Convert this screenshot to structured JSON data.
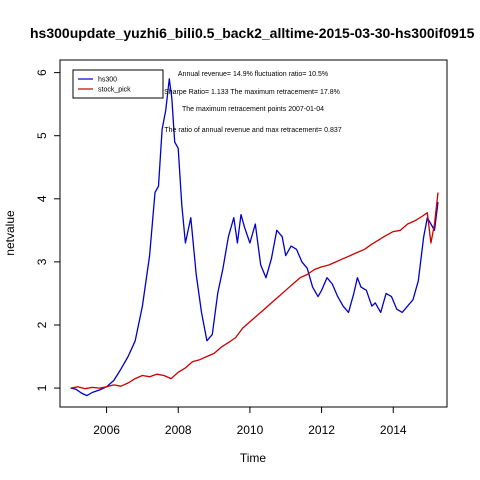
{
  "chart_data": {
    "type": "line",
    "title": "hs300update_yuzhi6_bili0.5_back2_alltime-2015-03-30-hs300if0915",
    "xlabel": "Time",
    "ylabel": "netvalue",
    "xlim": [
      2004.7,
      2015.5
    ],
    "ylim": [
      0.7,
      6.2
    ],
    "xticks": [
      2006,
      2008,
      2010,
      2012,
      2014
    ],
    "yticks": [
      1,
      2,
      3,
      4,
      5,
      6
    ],
    "grid": false,
    "legend": {
      "placement": "top-left",
      "entries": [
        "hs300",
        "stock_pick"
      ]
    },
    "annotations": [
      "Annual revenue= 14.9% fluctuation ratio= 10.5%",
      "Sharpe Ratio= 1.133 The maximum retracement= 17.8%",
      "The maximum retracement points 2007-01-04",
      "The ratio of annual revenue and max retracement= 0.837"
    ],
    "series": [
      {
        "name": "hs300",
        "color": "#0000cc",
        "x": [
          2005.0,
          2005.15,
          2005.3,
          2005.45,
          2005.6,
          2005.8,
          2006.0,
          2006.2,
          2006.4,
          2006.6,
          2006.8,
          2007.0,
          2007.2,
          2007.35,
          2007.45,
          2007.55,
          2007.65,
          2007.75,
          2007.82,
          2007.9,
          2008.0,
          2008.1,
          2008.2,
          2008.35,
          2008.5,
          2008.65,
          2008.8,
          2008.95,
          2009.1,
          2009.25,
          2009.4,
          2009.55,
          2009.65,
          2009.75,
          2009.85,
          2010.0,
          2010.15,
          2010.3,
          2010.45,
          2010.6,
          2010.75,
          2010.9,
          2011.0,
          2011.15,
          2011.3,
          2011.45,
          2011.6,
          2011.75,
          2011.9,
          2012.0,
          2012.15,
          2012.3,
          2012.45,
          2012.6,
          2012.75,
          2012.9,
          2013.0,
          2013.1,
          2013.25,
          2013.4,
          2013.5,
          2013.65,
          2013.8,
          2013.95,
          2014.1,
          2014.25,
          2014.4,
          2014.55,
          2014.7,
          2014.85,
          2014.95,
          2015.05,
          2015.15,
          2015.25
        ],
        "values": [
          1.0,
          0.98,
          0.92,
          0.88,
          0.93,
          0.97,
          1.02,
          1.12,
          1.3,
          1.5,
          1.75,
          2.3,
          3.1,
          4.1,
          4.2,
          5.1,
          5.4,
          5.9,
          5.6,
          4.9,
          4.8,
          3.9,
          3.3,
          3.7,
          2.8,
          2.2,
          1.75,
          1.85,
          2.5,
          2.9,
          3.4,
          3.7,
          3.3,
          3.75,
          3.55,
          3.3,
          3.6,
          2.95,
          2.75,
          3.05,
          3.5,
          3.4,
          3.1,
          3.25,
          3.2,
          3.0,
          2.9,
          2.6,
          2.45,
          2.55,
          2.75,
          2.65,
          2.45,
          2.3,
          2.2,
          2.5,
          2.75,
          2.6,
          2.55,
          2.3,
          2.35,
          2.2,
          2.5,
          2.45,
          2.25,
          2.2,
          2.3,
          2.4,
          2.7,
          3.4,
          3.7,
          3.6,
          3.5,
          3.95
        ]
      },
      {
        "name": "stock_pick",
        "color": "#cc0000",
        "x": [
          2005.0,
          2005.2,
          2005.4,
          2005.6,
          2005.8,
          2006.0,
          2006.2,
          2006.4,
          2006.6,
          2006.8,
          2007.0,
          2007.2,
          2007.4,
          2007.6,
          2007.8,
          2008.0,
          2008.2,
          2008.4,
          2008.6,
          2008.8,
          2009.0,
          2009.2,
          2009.4,
          2009.6,
          2009.8,
          2010.0,
          2010.2,
          2010.4,
          2010.6,
          2010.8,
          2011.0,
          2011.2,
          2011.4,
          2011.6,
          2011.8,
          2012.0,
          2012.2,
          2012.4,
          2012.6,
          2012.8,
          2013.0,
          2013.2,
          2013.4,
          2013.6,
          2013.8,
          2014.0,
          2014.2,
          2014.4,
          2014.6,
          2014.8,
          2014.95,
          2015.05,
          2015.15,
          2015.25
        ],
        "values": [
          1.0,
          1.02,
          0.99,
          1.01,
          1.0,
          1.02,
          1.05,
          1.03,
          1.08,
          1.15,
          1.2,
          1.18,
          1.22,
          1.2,
          1.15,
          1.25,
          1.32,
          1.42,
          1.45,
          1.5,
          1.55,
          1.65,
          1.72,
          1.8,
          1.95,
          2.05,
          2.15,
          2.25,
          2.35,
          2.45,
          2.55,
          2.65,
          2.75,
          2.8,
          2.88,
          2.92,
          2.95,
          3.0,
          3.05,
          3.1,
          3.15,
          3.2,
          3.28,
          3.35,
          3.42,
          3.48,
          3.5,
          3.6,
          3.65,
          3.72,
          3.78,
          3.3,
          3.6,
          4.1
        ]
      }
    ]
  }
}
